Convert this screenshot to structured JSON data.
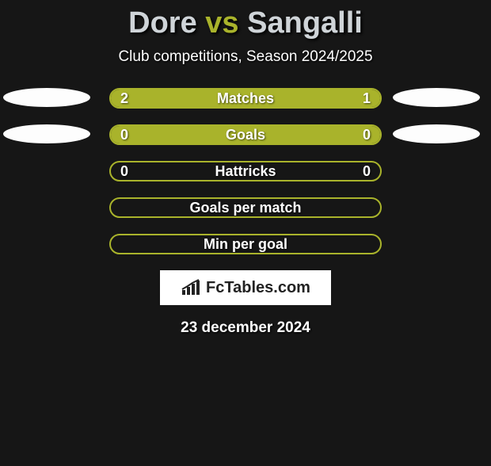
{
  "header": {
    "player1": "Dore",
    "vs": "vs",
    "player2": "Sangalli",
    "subtitle": "Club competitions, Season 2024/2025"
  },
  "accent_color": "#a9b32b",
  "background_color": "#161616",
  "photo_color": "#fdfdfd",
  "rows": [
    {
      "label": "Matches",
      "left": "2",
      "right": "1",
      "showLeftVal": true,
      "showRightVal": true,
      "leftFillPct": 66.7,
      "rightFillPct": 33.3,
      "showLeftPhoto": true,
      "showRightPhoto": true
    },
    {
      "label": "Goals",
      "left": "0",
      "right": "0",
      "showLeftVal": true,
      "showRightVal": true,
      "leftFillPct": 50,
      "rightFillPct": 50,
      "showLeftPhoto": true,
      "showRightPhoto": true
    },
    {
      "label": "Hattricks",
      "left": "0",
      "right": "0",
      "showLeftVal": true,
      "showRightVal": true,
      "leftFillPct": 0,
      "rightFillPct": 0,
      "showLeftPhoto": false,
      "showRightPhoto": false
    },
    {
      "label": "Goals per match",
      "left": "",
      "right": "",
      "showLeftVal": false,
      "showRightVal": false,
      "leftFillPct": 0,
      "rightFillPct": 0,
      "showLeftPhoto": false,
      "showRightPhoto": false
    },
    {
      "label": "Min per goal",
      "left": "",
      "right": "",
      "showLeftVal": false,
      "showRightVal": false,
      "leftFillPct": 0,
      "rightFillPct": 0,
      "showLeftPhoto": false,
      "showRightPhoto": false
    }
  ],
  "branding": "FcTables.com",
  "date": "23 december 2024"
}
